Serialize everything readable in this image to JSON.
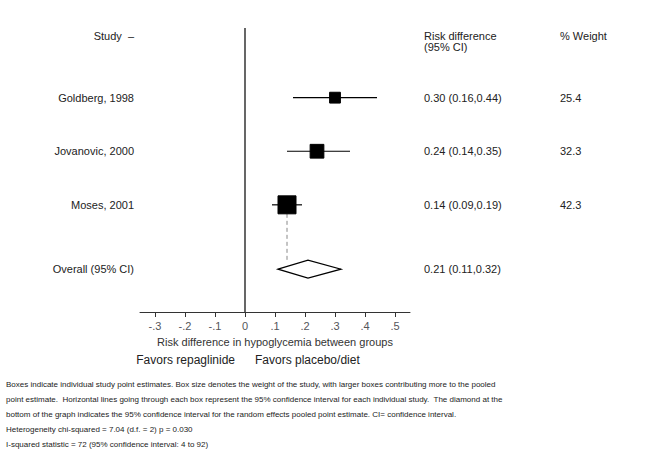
{
  "chart_data": {
    "type": "forest",
    "xlabel": "Risk difference in hypoglycemia between groups",
    "studies": [
      "Goldberg, 1998",
      "Jovanovic, 2000",
      "Moses, 2001"
    ],
    "estimates": [
      0.3,
      0.24,
      0.14
    ],
    "ci_lower": [
      0.16,
      0.14,
      0.09
    ],
    "ci_upper": [
      0.44,
      0.35,
      0.19
    ],
    "weights": [
      25.4,
      32.3,
      42.3
    ],
    "ci_labels": [
      "0.30 (0.16,0.44)",
      "0.24 (0.14,0.35)",
      "0.14 (0.09,0.19)"
    ],
    "overall_study_label": "Overall (95% CI)",
    "overall_estimate": 0.21,
    "overall_ci_lower": 0.11,
    "overall_ci_upper": 0.32,
    "overall_ci_label": "0.21 (0.11,0.32)",
    "reference_line": 0,
    "xlim": [
      -0.35,
      0.55
    ],
    "xticks": [
      {
        "value": -0.3,
        "label": "-.3"
      },
      {
        "value": -0.2,
        "label": "-.2"
      },
      {
        "value": -0.1,
        "label": "-.1"
      },
      0,
      {
        "value": 0.1,
        "label": ".1"
      },
      {
        "value": 0.2,
        "label": ".2"
      },
      {
        "value": 0.3,
        "label": ".3"
      },
      {
        "value": 0.4,
        "label": ".4"
      },
      {
        "value": 0.5,
        "label": ".5"
      }
    ],
    "grid": false,
    "color": "black",
    "study_header": "Study  –",
    "column_headers": [
      "Risk difference\n(95% CI)",
      "% Weight"
    ],
    "favors": [
      "Favors repaglinide",
      "Favors placebo/diet"
    ],
    "footnotes": [
      "Boxes indicate individual study point estimates. Box size denotes the weight of the study, with larger boxes contributing more to the pooled",
      "point estimate.  Horizontal lines going through each box represent the 95% confidence interval for each individual study.  The diamond at the",
      "bottom of the graph indicates the 95% confidence interval for the random effects pooled point estimate. CI= confidence interval.",
      "Heterogeneity chi-squared = 7.04 (d.f. = 2) p = 0.030",
      "I-squared statistic = 72 (95% confidence interval: 4 to 92)"
    ]
  }
}
